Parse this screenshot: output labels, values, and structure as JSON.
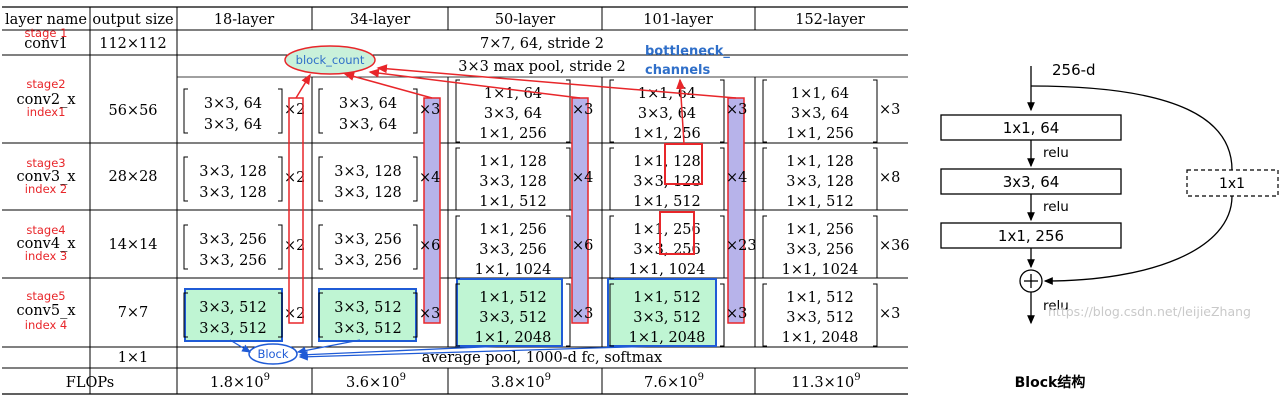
{
  "table": {
    "headers": [
      "layer name",
      "output size",
      "18-layer",
      "34-layer",
      "50-layer",
      "101-layer",
      "152-layer"
    ],
    "rows": [
      {
        "stage": "stage 1",
        "name": "conv1",
        "index": "",
        "size": "112×112",
        "span": "7×7, 64, stride 2"
      },
      {
        "stage": "stage2",
        "name": "conv2_x",
        "index": "index1",
        "size": "56×56",
        "span": "3×3 max pool, stride 2",
        "cells": [
          {
            "lines": [
              "3×3, 64",
              "3×3, 64"
            ],
            "mult": "×2"
          },
          {
            "lines": [
              "3×3, 64",
              "3×3, 64"
            ],
            "mult": "×3"
          },
          {
            "lines": [
              "1×1, 64",
              "3×3, 64",
              "1×1, 256"
            ],
            "mult": "×3"
          },
          {
            "lines": [
              "1×1, 64",
              "3×3, 64",
              "1×1, 256"
            ],
            "mult": "×3"
          },
          {
            "lines": [
              "1×1, 64",
              "3×3, 64",
              "1×1, 256"
            ],
            "mult": "×3"
          }
        ]
      },
      {
        "stage": "stage3",
        "name": "conv3_x",
        "index": "index 2",
        "size": "28×28",
        "cells": [
          {
            "lines": [
              "3×3, 128",
              "3×3, 128"
            ],
            "mult": "×2"
          },
          {
            "lines": [
              "3×3, 128",
              "3×3, 128"
            ],
            "mult": "×4"
          },
          {
            "lines": [
              "1×1, 128",
              "3×3, 128",
              "1×1, 512"
            ],
            "mult": "×4"
          },
          {
            "lines": [
              "1×1, 128",
              "3×3, 128",
              "1×1, 512"
            ],
            "mult": "×4"
          },
          {
            "lines": [
              "1×1, 128",
              "3×3, 128",
              "1×1, 512"
            ],
            "mult": "×8"
          }
        ]
      },
      {
        "stage": "stage4",
        "name": "conv4_x",
        "index": "index 3",
        "size": "14×14",
        "cells": [
          {
            "lines": [
              "3×3, 256",
              "3×3, 256"
            ],
            "mult": "×2"
          },
          {
            "lines": [
              "3×3, 256",
              "3×3, 256"
            ],
            "mult": "×6"
          },
          {
            "lines": [
              "1×1, 256",
              "3×3, 256",
              "1×1, 1024"
            ],
            "mult": "×6"
          },
          {
            "lines": [
              "1×1, 256",
              "3×3, 256",
              "1×1, 1024"
            ],
            "mult": "×23"
          },
          {
            "lines": [
              "1×1, 256",
              "3×3, 256",
              "1×1, 1024"
            ],
            "mult": "×36"
          }
        ]
      },
      {
        "stage": "stage5",
        "name": "conv5_x",
        "index": "index 4",
        "size": "7×7",
        "cells": [
          {
            "lines": [
              "3×3, 512",
              "3×3, 512"
            ],
            "mult": "×2"
          },
          {
            "lines": [
              "3×3, 512",
              "3×3, 512"
            ],
            "mult": "×3"
          },
          {
            "lines": [
              "1×1, 512",
              "3×3, 512",
              "1×1, 2048"
            ],
            "mult": "×3"
          },
          {
            "lines": [
              "1×1, 512",
              "3×3, 512",
              "1×1, 2048"
            ],
            "mult": "×3"
          },
          {
            "lines": [
              "1×1, 512",
              "3×3, 512",
              "1×1, 2048"
            ],
            "mult": "×3"
          }
        ]
      },
      {
        "stage": "",
        "name": "",
        "index": "",
        "size": "1×1",
        "span": "average pool, 1000-d fc, softmax"
      }
    ],
    "flops": {
      "label": "FLOPs",
      "values": [
        {
          "mant": "1.8×10",
          "exp": "9"
        },
        {
          "mant": "3.6×10",
          "exp": "9"
        },
        {
          "mant": "3.8×10",
          "exp": "9"
        },
        {
          "mant": "7.6×10",
          "exp": "9"
        },
        {
          "mant": "11.3×10",
          "exp": "9"
        }
      ]
    }
  },
  "annotations": {
    "block_count": "block_count",
    "bottleneck": [
      "bottleneck_",
      "channels"
    ],
    "block": "Block"
  },
  "block_diagram": {
    "input": "256-d",
    "layers": [
      "1x1, 64",
      "3x3, 64",
      "1x1, 256"
    ],
    "relu": "relu",
    "shortcut": "1x1",
    "caption": "Block结构"
  },
  "watermark": "https://blog.csdn.net/leijieZhang",
  "colors": {
    "annotation_red": "#e8262a",
    "annotation_blue": "#1f5bd6",
    "label_blue": "#2f6fc9",
    "green_fill": "#bff5d3",
    "purple_fill": "#b7b3ea",
    "ellipse_fill": "#c9f1da"
  }
}
